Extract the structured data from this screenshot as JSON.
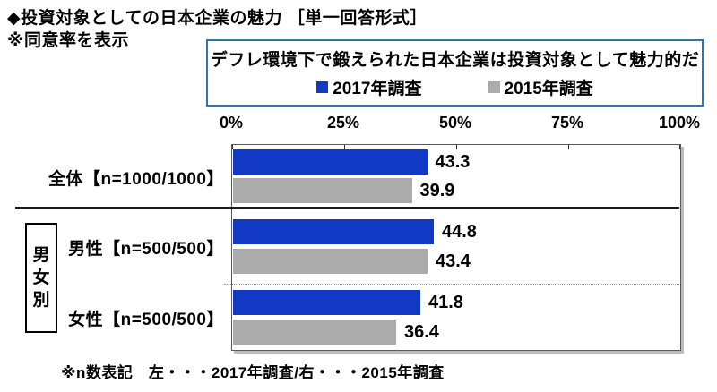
{
  "page": {
    "title": "◆投資対象としての日本企業の魅力 ［単一回答形式］",
    "note": "※同意率を表示",
    "footnote": "※n数表記　左・・・2017年調査/右・・・2015年調査"
  },
  "question_box": {
    "text": "デフレ環境下で鍛えられた日本企業は投資対象として魅力的だ",
    "border_color": "#2E75B6"
  },
  "group_label": "男女別",
  "chart_data": {
    "type": "bar",
    "orientation": "horizontal",
    "title": "デフレ環境下で鍛えられた日本企業は投資対象として魅力的だ",
    "categories": [
      "全体【n=1000/1000】",
      "男性【n=500/500】",
      "女性【n=500/500】"
    ],
    "series": [
      {
        "name": "2017年調査",
        "color": "#1139C5",
        "values": [
          43.3,
          44.8,
          41.8
        ]
      },
      {
        "name": "2015年調査",
        "color": "#ABABAB",
        "values": [
          39.9,
          43.4,
          36.4
        ]
      }
    ],
    "value_labels_shown": true,
    "xlabel": "",
    "ylabel": "",
    "xlim": [
      0,
      100
    ],
    "x_ticks": [
      "0%",
      "25%",
      "50%",
      "75%",
      "100%"
    ],
    "grid": false,
    "legend_position": "top"
  }
}
